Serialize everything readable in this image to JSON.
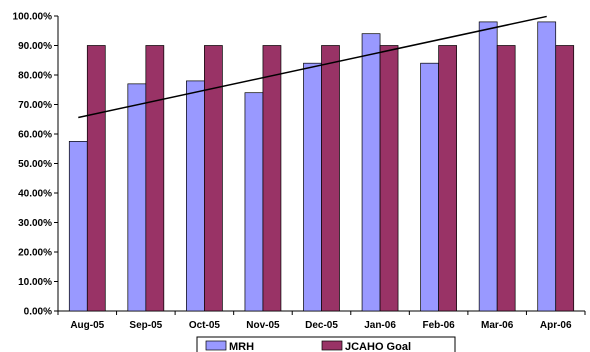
{
  "chart_data": {
    "type": "bar",
    "categories": [
      "Aug-05",
      "Sep-05",
      "Oct-05",
      "Nov-05",
      "Dec-05",
      "Jan-06",
      "Feb-06",
      "Mar-06",
      "Apr-06"
    ],
    "series": [
      {
        "name": "MRH",
        "values": [
          57.5,
          77,
          78,
          74,
          84,
          94,
          84,
          98,
          98
        ],
        "color": "#9999ff"
      },
      {
        "name": "JCAHO Goal",
        "values": [
          90,
          90,
          90,
          90,
          90,
          90,
          90,
          90,
          90
        ],
        "color": "#993366"
      }
    ],
    "trendline": {
      "series": "MRH",
      "type": "linear",
      "color": "#000000"
    },
    "y_ticks": [
      "0.00%",
      "10.00%",
      "20.00%",
      "30.00%",
      "40.00%",
      "50.00%",
      "60.00%",
      "70.00%",
      "80.00%",
      "90.00%",
      "100.00%"
    ],
    "ylim": [
      0,
      100
    ],
    "title": "",
    "xlabel": "",
    "ylabel": "",
    "grid": false,
    "legend_position": "bottom"
  }
}
